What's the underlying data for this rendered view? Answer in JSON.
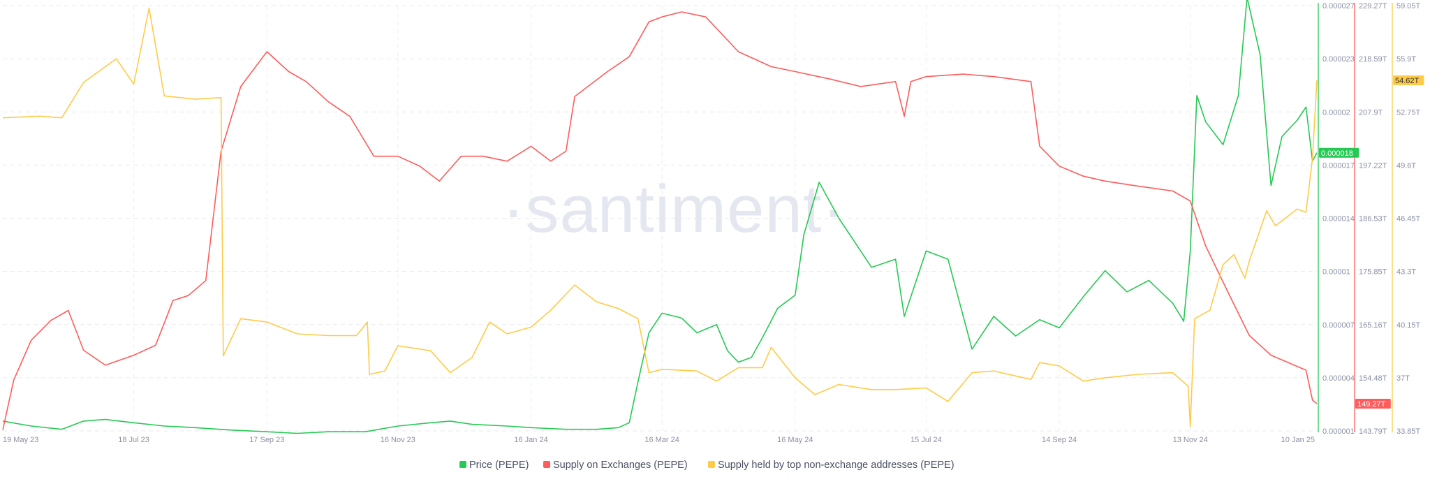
{
  "watermark": "·santiment·",
  "chart_data": {
    "type": "line",
    "x": [
      "19 May 23",
      "18 Jul 23",
      "17 Sep 23",
      "16 Nov 23",
      "16 Jan 24",
      "16 Mar 24",
      "16 May 24",
      "15 Jul 24",
      "14 Sep 24",
      "13 Nov 24",
      "10 Jan 25"
    ],
    "x_range": [
      "2023-05-19",
      "2025-01-10"
    ],
    "grid": true,
    "legend_position": "bottom",
    "axes": {
      "price": {
        "ticks": [
          "0.000027",
          "0.000023",
          "0.00002",
          "0.000017",
          "0.000014",
          "0.00001",
          "0.000007",
          "0.000004",
          "0.000001"
        ],
        "range": [
          1e-06,
          2.7e-05
        ],
        "color": "#26c953",
        "current_label": "0.000018"
      },
      "exchange": {
        "ticks": [
          "229.27T",
          "218.59T",
          "207.9T",
          "197.22T",
          "186.53T",
          "175.85T",
          "165.16T",
          "154.48T",
          "143.79T"
        ],
        "range": [
          143.79,
          229.27
        ],
        "color": "#ff5b5b",
        "current_label": "149.27T"
      },
      "holders": {
        "ticks": [
          "59.05T",
          "55.9T",
          "52.75T",
          "49.6T",
          "46.45T",
          "43.3T",
          "40.15T",
          "37T",
          "33.85T"
        ],
        "range": [
          33.85,
          59.05
        ],
        "color": "#ffcb47",
        "current_label": "54.62T"
      }
    },
    "series": [
      {
        "name": "Price (PEPE)",
        "axis": "price",
        "color": "#26c953",
        "points": [
          [
            "2023-05-19",
            1.6e-06
          ],
          [
            "2023-06-01",
            1.3e-06
          ],
          [
            "2023-06-15",
            1.1e-06
          ],
          [
            "2023-06-25",
            1.6e-06
          ],
          [
            "2023-07-05",
            1.7e-06
          ],
          [
            "2023-07-18",
            1.5e-06
          ],
          [
            "2023-08-01",
            1.3e-06
          ],
          [
            "2023-08-15",
            1.2e-06
          ],
          [
            "2023-09-01",
            1.05e-06
          ],
          [
            "2023-09-17",
            9.5e-07
          ],
          [
            "2023-10-01",
            8.5e-07
          ],
          [
            "2023-10-15",
            9.5e-07
          ],
          [
            "2023-11-01",
            9.5e-07
          ],
          [
            "2023-11-16",
            1.3e-06
          ],
          [
            "2023-12-01",
            1.5e-06
          ],
          [
            "2023-12-10",
            1.6e-06
          ],
          [
            "2023-12-20",
            1.4e-06
          ],
          [
            "2024-01-05",
            1.3e-06
          ],
          [
            "2024-01-16",
            1.2e-06
          ],
          [
            "2024-02-01",
            1.1e-06
          ],
          [
            "2024-02-15",
            1.1e-06
          ],
          [
            "2024-02-25",
            1.2e-06
          ],
          [
            "2024-03-01",
            1.5e-06
          ],
          [
            "2024-03-05",
            4e-06
          ],
          [
            "2024-03-10",
            7e-06
          ],
          [
            "2024-03-16",
            8.2e-06
          ],
          [
            "2024-03-25",
            7.9e-06
          ],
          [
            "2024-04-01",
            7e-06
          ],
          [
            "2024-04-10",
            7.5e-06
          ],
          [
            "2024-04-15",
            5.9e-06
          ],
          [
            "2024-04-20",
            5.2e-06
          ],
          [
            "2024-04-26",
            5.5e-06
          ],
          [
            "2024-05-01",
            6.7e-06
          ],
          [
            "2024-05-08",
            8.5e-06
          ],
          [
            "2024-05-16",
            9.3e-06
          ],
          [
            "2024-05-20",
            1.3e-05
          ],
          [
            "2024-05-27",
            1.62e-05
          ],
          [
            "2024-06-05",
            1.4e-05
          ],
          [
            "2024-06-15",
            1.2e-05
          ],
          [
            "2024-06-20",
            1.1e-05
          ],
          [
            "2024-07-01",
            1.15e-05
          ],
          [
            "2024-07-05",
            8e-06
          ],
          [
            "2024-07-15",
            1.2e-05
          ],
          [
            "2024-07-25",
            1.15e-05
          ],
          [
            "2024-08-05",
            6e-06
          ],
          [
            "2024-08-15",
            8e-06
          ],
          [
            "2024-08-25",
            6.8e-06
          ],
          [
            "2024-09-05",
            7.8e-06
          ],
          [
            "2024-09-14",
            7.3e-06
          ],
          [
            "2024-09-25",
            9.2e-06
          ],
          [
            "2024-10-05",
            1.08e-05
          ],
          [
            "2024-10-15",
            9.5e-06
          ],
          [
            "2024-10-25",
            1.02e-05
          ],
          [
            "2024-11-05",
            8.8e-06
          ],
          [
            "2024-11-10",
            7.7e-06
          ],
          [
            "2024-11-13",
            1.2e-05
          ],
          [
            "2024-11-16",
            2.15e-05
          ],
          [
            "2024-11-20",
            1.99e-05
          ],
          [
            "2024-11-28",
            1.85e-05
          ],
          [
            "2024-12-05",
            2.15e-05
          ],
          [
            "2024-12-09",
            2.75e-05
          ],
          [
            "2024-12-15",
            2.4e-05
          ],
          [
            "2024-12-20",
            1.6e-05
          ],
          [
            "2024-12-25",
            1.9e-05
          ],
          [
            "2025-01-01",
            2e-05
          ],
          [
            "2025-01-05",
            2.08e-05
          ],
          [
            "2025-01-08",
            1.75e-05
          ],
          [
            "2025-01-10",
            1.8e-05
          ]
        ]
      },
      {
        "name": "Supply on Exchanges (PEPE)",
        "axis": "exchange",
        "color": "#ff5b5b",
        "points": [
          [
            "2023-05-19",
            144
          ],
          [
            "2023-05-24",
            154
          ],
          [
            "2023-06-01",
            162
          ],
          [
            "2023-06-10",
            166
          ],
          [
            "2023-06-18",
            168
          ],
          [
            "2023-06-25",
            160
          ],
          [
            "2023-07-05",
            157
          ],
          [
            "2023-07-18",
            159
          ],
          [
            "2023-07-28",
            161
          ],
          [
            "2023-08-05",
            170
          ],
          [
            "2023-08-12",
            171
          ],
          [
            "2023-08-20",
            174
          ],
          [
            "2023-08-27",
            200
          ],
          [
            "2023-09-05",
            213
          ],
          [
            "2023-09-17",
            220
          ],
          [
            "2023-09-27",
            216
          ],
          [
            "2023-10-05",
            214
          ],
          [
            "2023-10-15",
            210
          ],
          [
            "2023-10-25",
            207
          ],
          [
            "2023-11-05",
            199
          ],
          [
            "2023-11-16",
            199
          ],
          [
            "2023-11-26",
            197
          ],
          [
            "2023-12-05",
            194
          ],
          [
            "2023-12-15",
            199
          ],
          [
            "2023-12-25",
            199
          ],
          [
            "2024-01-05",
            198
          ],
          [
            "2024-01-16",
            201
          ],
          [
            "2024-01-25",
            198
          ],
          [
            "2024-02-01",
            200
          ],
          [
            "2024-02-05",
            211
          ],
          [
            "2024-02-20",
            216
          ],
          [
            "2024-03-01",
            219
          ],
          [
            "2024-03-10",
            226
          ],
          [
            "2024-03-16",
            227
          ],
          [
            "2024-03-25",
            228
          ],
          [
            "2024-04-05",
            227
          ],
          [
            "2024-04-20",
            220
          ],
          [
            "2024-05-05",
            217
          ],
          [
            "2024-05-16",
            216
          ],
          [
            "2024-06-01",
            214.5
          ],
          [
            "2024-06-15",
            213
          ],
          [
            "2024-07-01",
            214
          ],
          [
            "2024-07-05",
            207
          ],
          [
            "2024-07-08",
            214
          ],
          [
            "2024-07-15",
            215
          ],
          [
            "2024-08-01",
            215.5
          ],
          [
            "2024-08-15",
            215
          ],
          [
            "2024-09-01",
            214
          ],
          [
            "2024-09-05",
            201
          ],
          [
            "2024-09-14",
            197
          ],
          [
            "2024-09-25",
            195
          ],
          [
            "2024-10-05",
            194
          ],
          [
            "2024-10-20",
            193
          ],
          [
            "2024-11-05",
            192
          ],
          [
            "2024-11-13",
            190
          ],
          [
            "2024-11-20",
            181
          ],
          [
            "2024-12-01",
            171
          ],
          [
            "2024-12-10",
            163
          ],
          [
            "2024-12-20",
            159
          ],
          [
            "2025-01-05",
            156
          ],
          [
            "2025-01-08",
            150
          ],
          [
            "2025-01-10",
            149.27
          ]
        ]
      },
      {
        "name": "Supply held by top non-exchange addresses (PEPE)",
        "axis": "holders",
        "color": "#ffcb47",
        "points": [
          [
            "2023-05-19",
            52.4
          ],
          [
            "2023-06-05",
            52.5
          ],
          [
            "2023-06-15",
            52.4
          ],
          [
            "2023-06-25",
            54.5
          ],
          [
            "2023-07-10",
            55.9
          ],
          [
            "2023-07-18",
            54.4
          ],
          [
            "2023-07-25",
            58.9
          ],
          [
            "2023-08-01",
            53.7
          ],
          [
            "2023-08-15",
            53.5
          ],
          [
            "2023-08-27",
            53.6
          ],
          [
            "2023-08-28",
            38.3
          ],
          [
            "2023-09-05",
            40.5
          ],
          [
            "2023-09-17",
            40.3
          ],
          [
            "2023-10-01",
            39.6
          ],
          [
            "2023-10-15",
            39.5
          ],
          [
            "2023-10-28",
            39.5
          ],
          [
            "2023-11-02",
            40.3
          ],
          [
            "2023-11-03",
            37.2
          ],
          [
            "2023-11-10",
            37.4
          ],
          [
            "2023-11-16",
            38.9
          ],
          [
            "2023-12-01",
            38.6
          ],
          [
            "2023-12-10",
            37.3
          ],
          [
            "2023-12-20",
            38.2
          ],
          [
            "2023-12-28",
            40.3
          ],
          [
            "2024-01-05",
            39.6
          ],
          [
            "2024-01-16",
            40.0
          ],
          [
            "2024-01-25",
            41.0
          ],
          [
            "2024-02-05",
            42.5
          ],
          [
            "2024-02-15",
            41.5
          ],
          [
            "2024-02-25",
            41.1
          ],
          [
            "2024-03-05",
            40.5
          ],
          [
            "2024-03-10",
            37.3
          ],
          [
            "2024-03-16",
            37.5
          ],
          [
            "2024-04-01",
            37.4
          ],
          [
            "2024-04-10",
            36.8
          ],
          [
            "2024-04-20",
            37.6
          ],
          [
            "2024-05-01",
            37.6
          ],
          [
            "2024-05-05",
            38.8
          ],
          [
            "2024-05-16",
            37.0
          ],
          [
            "2024-05-25",
            36.0
          ],
          [
            "2024-06-05",
            36.6
          ],
          [
            "2024-06-20",
            36.3
          ],
          [
            "2024-07-01",
            36.3
          ],
          [
            "2024-07-15",
            36.4
          ],
          [
            "2024-07-25",
            35.6
          ],
          [
            "2024-08-05",
            37.3
          ],
          [
            "2024-08-15",
            37.4
          ],
          [
            "2024-09-01",
            36.9
          ],
          [
            "2024-09-05",
            37.9
          ],
          [
            "2024-09-14",
            37.7
          ],
          [
            "2024-09-25",
            36.8
          ],
          [
            "2024-10-05",
            37.0
          ],
          [
            "2024-10-20",
            37.2
          ],
          [
            "2024-11-05",
            37.3
          ],
          [
            "2024-11-12",
            36.5
          ],
          [
            "2024-11-13",
            34.1
          ],
          [
            "2024-11-15",
            40.5
          ],
          [
            "2024-11-22",
            41.0
          ],
          [
            "2024-11-28",
            43.7
          ],
          [
            "2024-12-03",
            44.3
          ],
          [
            "2024-12-08",
            42.9
          ],
          [
            "2024-12-10",
            43.9
          ],
          [
            "2024-12-18",
            46.9
          ],
          [
            "2024-12-22",
            46.0
          ],
          [
            "2025-01-01",
            47.0
          ],
          [
            "2025-01-05",
            46.8
          ],
          [
            "2025-01-08",
            50.0
          ],
          [
            "2025-01-10",
            54.62
          ]
        ]
      }
    ]
  }
}
